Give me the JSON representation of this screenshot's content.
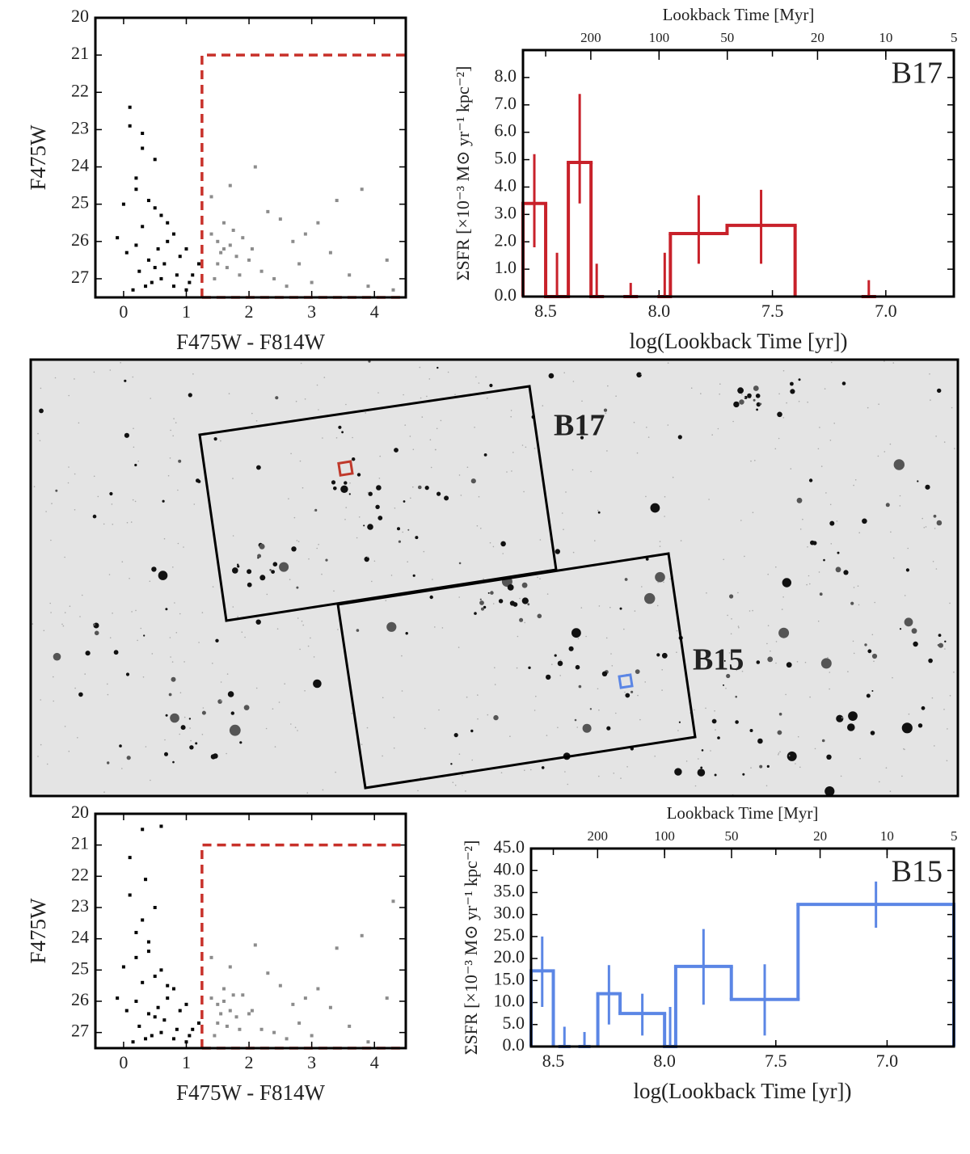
{
  "chart_data": [
    {
      "type": "scatter",
      "xlabel": "F475W - F814W",
      "ylabel": "F475W",
      "xlim": [
        -0.45,
        4.5
      ],
      "ylim": [
        27.5,
        20
      ],
      "xticks": [
        0,
        1,
        2,
        3,
        4
      ],
      "yticks": [
        20,
        21,
        22,
        23,
        24,
        25,
        26,
        27
      ],
      "region": {
        "xlim": [
          1.25,
          4.5
        ],
        "ylim": [
          27.5,
          21
        ],
        "color": "#c8312a"
      },
      "series": [
        {
          "color": "#000000",
          "x": [
            0.1,
            0.3,
            0.5,
            0.2,
            0.4,
            0.6,
            0.8,
            1.0,
            1.2,
            0.0,
            0.3,
            0.7,
            0.9,
            1.1,
            0.5,
            0.2,
            0.4,
            0.6,
            0.8,
            1.0,
            0.1,
            0.3,
            0.2,
            0.5,
            0.7,
            -0.1,
            0.05,
            0.25,
            0.45,
            0.65,
            0.85,
            1.05,
            0.15,
            0.35,
            0.55
          ],
          "values": [
            22.4,
            23.1,
            23.8,
            24.3,
            24.9,
            25.3,
            25.8,
            26.2,
            26.6,
            25.0,
            25.6,
            26.0,
            26.4,
            26.9,
            26.7,
            26.1,
            26.5,
            27.0,
            27.2,
            27.3,
            22.9,
            23.5,
            24.6,
            25.1,
            25.5,
            25.9,
            26.3,
            26.8,
            27.1,
            26.6,
            26.9,
            27.1,
            27.3,
            27.2,
            26.2
          ]
        },
        {
          "color": "#8c8c8c",
          "x": [
            1.4,
            1.5,
            1.6,
            1.7,
            1.8,
            1.6,
            1.5,
            1.9,
            2.0,
            2.2,
            2.4,
            2.6,
            2.8,
            3.0,
            3.3,
            3.6,
            3.9,
            4.2,
            1.4,
            1.7,
            2.1,
            2.5,
            2.9,
            3.4,
            1.55,
            1.65,
            1.75,
            1.85,
            2.3,
            2.7,
            3.1,
            3.8,
            4.3,
            1.45,
            2.05
          ],
          "values": [
            25.8,
            26.0,
            26.2,
            26.1,
            26.4,
            25.5,
            26.6,
            25.9,
            26.5,
            26.8,
            27.0,
            27.2,
            26.6,
            27.1,
            26.3,
            26.9,
            27.2,
            26.5,
            24.8,
            24.5,
            24.0,
            25.4,
            25.8,
            24.9,
            26.3,
            26.7,
            25.7,
            26.9,
            25.2,
            26.0,
            25.5,
            24.6,
            27.3,
            27.0,
            26.2
          ]
        }
      ]
    },
    {
      "type": "step",
      "annotation": "B17",
      "xlabel": "log(Lookback Time [yr])",
      "x2label": "Lookback Time [Myr]",
      "ylabel": "ΣSFR [×10⁻³ M⊙ yr⁻¹ kpc⁻²]",
      "xlim": [
        8.6,
        6.7
      ],
      "ylim": [
        0,
        9
      ],
      "xticks": [
        8.5,
        {
          "value": 8.0,
          "label": "8.0"
        },
        7.5,
        {
          "value": 7.0,
          "label": "7.0"
        }
      ],
      "x2ticks": [
        {
          "value": 8.301,
          "label": "200"
        },
        {
          "value": 8.0,
          "label": "100"
        },
        {
          "value": 7.699,
          "label": "50"
        },
        {
          "value": 7.301,
          "label": "20"
        },
        {
          "value": 7.0,
          "label": "10"
        },
        {
          "value": 6.699,
          "label": "5"
        }
      ],
      "yticks": [
        {
          "value": 0,
          "label": "0.0"
        },
        {
          "value": 1,
          "label": "1.0"
        },
        {
          "value": 2,
          "label": "2.0"
        },
        {
          "value": 3,
          "label": "3.0"
        },
        {
          "value": 4,
          "label": "4.0"
        },
        {
          "value": 5,
          "label": "5.0"
        },
        {
          "value": 6,
          "label": "6.0"
        },
        {
          "value": 7,
          "label": "7.0"
        },
        {
          "value": 8,
          "label": "8.0"
        }
      ],
      "series": [
        {
          "color": "#c8212a",
          "x_left": [
            8.6,
            8.5,
            8.4,
            8.3,
            8.15,
            8.0,
            7.95,
            7.7,
            7.1
          ],
          "x_right": [
            8.5,
            8.4,
            8.3,
            8.25,
            8.1,
            7.95,
            7.7,
            7.4,
            7.05
          ],
          "values": [
            3.4,
            0,
            4.9,
            0,
            0,
            0,
            2.3,
            2.6,
            0
          ],
          "err_low": [
            1.8,
            0,
            3.4,
            0,
            0,
            0,
            1.2,
            1.2,
            0
          ],
          "err_high": [
            5.2,
            1.6,
            7.4,
            1.2,
            0.5,
            1.6,
            3.7,
            3.9,
            0.6
          ]
        }
      ]
    },
    {
      "type": "scatter",
      "xlabel": "F475W - F814W",
      "ylabel": "F475W",
      "xlim": [
        -0.45,
        4.5
      ],
      "ylim": [
        27.5,
        20
      ],
      "xticks": [
        0,
        1,
        2,
        3,
        4
      ],
      "yticks": [
        20,
        21,
        22,
        23,
        24,
        25,
        26,
        27
      ],
      "region": {
        "xlim": [
          1.25,
          4.5
        ],
        "ylim": [
          27.5,
          21
        ],
        "color": "#c8312a"
      },
      "series": [
        {
          "color": "#000000",
          "x": [
            0.1,
            0.35,
            0.5,
            0.2,
            0.4,
            0.6,
            0.8,
            1.0,
            1.2,
            0.0,
            0.3,
            0.7,
            0.9,
            1.1,
            0.5,
            0.2,
            0.4,
            0.6,
            0.8,
            1.0,
            0.1,
            0.3,
            0.2,
            0.5,
            0.7,
            -0.1,
            0.05,
            0.25,
            0.45,
            0.65,
            0.85,
            1.05,
            0.15,
            0.35,
            0.55,
            0.3,
            0.6,
            0.4
          ],
          "values": [
            21.4,
            22.1,
            23.0,
            23.8,
            24.4,
            25.0,
            25.6,
            26.1,
            26.7,
            24.9,
            25.4,
            25.9,
            26.3,
            26.9,
            26.5,
            26.0,
            26.4,
            27.0,
            27.2,
            27.3,
            22.6,
            23.4,
            24.6,
            25.2,
            25.5,
            25.9,
            26.3,
            26.8,
            27.1,
            26.6,
            26.9,
            27.1,
            27.3,
            27.2,
            26.2,
            20.5,
            20.4,
            24.1
          ]
        },
        {
          "color": "#8c8c8c",
          "x": [
            1.4,
            1.5,
            1.6,
            1.7,
            1.8,
            1.6,
            1.5,
            1.9,
            2.0,
            2.2,
            2.4,
            2.6,
            2.8,
            3.0,
            3.3,
            3.6,
            3.9,
            4.2,
            1.4,
            1.7,
            2.1,
            2.5,
            2.9,
            3.4,
            1.55,
            1.65,
            1.75,
            1.85,
            2.3,
            2.7,
            3.1,
            3.8,
            4.3,
            1.45,
            2.05
          ],
          "values": [
            25.9,
            26.1,
            26.0,
            26.3,
            26.5,
            25.6,
            26.7,
            25.8,
            26.4,
            26.9,
            27.0,
            27.2,
            26.7,
            27.1,
            26.2,
            26.8,
            27.3,
            25.9,
            24.6,
            24.9,
            24.2,
            25.5,
            25.9,
            24.3,
            26.4,
            26.8,
            25.8,
            26.9,
            25.1,
            26.1,
            25.6,
            23.9,
            22.8,
            27.1,
            26.3
          ]
        }
      ]
    },
    {
      "type": "step",
      "annotation": "B15",
      "xlabel": "log(Lookback Time [yr])",
      "x2label": "Lookback Time [Myr]",
      "ylabel": "ΣSFR [×10⁻³ M⊙ yr⁻¹ kpc⁻²]",
      "xlim": [
        8.6,
        6.7
      ],
      "ylim": [
        0,
        45
      ],
      "xticks": [
        8.5,
        {
          "value": 8.0,
          "label": "8.0"
        },
        7.5,
        {
          "value": 7.0,
          "label": "7.0"
        }
      ],
      "x2ticks": [
        {
          "value": 8.301,
          "label": "200"
        },
        {
          "value": 8.0,
          "label": "100"
        },
        {
          "value": 7.699,
          "label": "50"
        },
        {
          "value": 7.301,
          "label": "20"
        },
        {
          "value": 7.0,
          "label": "10"
        },
        {
          "value": 6.699,
          "label": "5"
        }
      ],
      "yticks": [
        {
          "value": 0,
          "label": "0.0"
        },
        {
          "value": 5,
          "label": "5.0"
        },
        {
          "value": 10,
          "label": "10.0"
        },
        {
          "value": 15,
          "label": "15.0"
        },
        {
          "value": 20,
          "label": "20.0"
        },
        {
          "value": 25,
          "label": "25.0"
        },
        {
          "value": 30,
          "label": "30.0"
        },
        {
          "value": 35,
          "label": "35.0"
        },
        {
          "value": 40,
          "label": "40.0"
        },
        {
          "value": 45,
          "label": "45.0"
        }
      ],
      "series": [
        {
          "color": "#5b86e5",
          "x_left": [
            8.6,
            8.47,
            8.38,
            8.3,
            8.2,
            8.0,
            7.95,
            7.7,
            7.4
          ],
          "x_right": [
            8.5,
            8.43,
            8.34,
            8.2,
            8.0,
            7.95,
            7.7,
            7.4,
            6.7
          ],
          "values": [
            17.2,
            0,
            0,
            12,
            7.5,
            0,
            18.2,
            10.7,
            32.3
          ],
          "err_low": [
            9,
            0,
            0,
            5,
            2.5,
            0,
            9.5,
            2.5,
            27
          ],
          "err_high": [
            25,
            4.5,
            3.3,
            18.5,
            12,
            9,
            26.7,
            18.7,
            37.5
          ]
        }
      ]
    }
  ],
  "image": {
    "labels": [
      {
        "text": "B17",
        "color": "#c0392b"
      },
      {
        "text": "B15",
        "color": "#5b86e5"
      }
    ]
  }
}
